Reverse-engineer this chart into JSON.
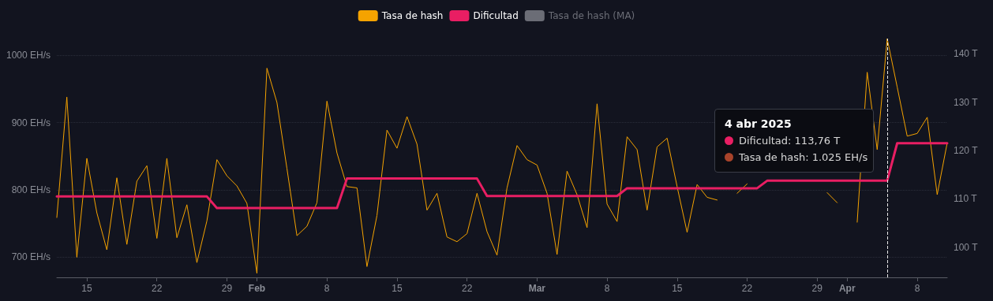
{
  "chart_data": {
    "type": "line",
    "x": [
      "2025-01-12",
      "2025-01-13",
      "2025-01-14",
      "2025-01-15",
      "2025-01-16",
      "2025-01-17",
      "2025-01-18",
      "2025-01-19",
      "2025-01-20",
      "2025-01-21",
      "2025-01-22",
      "2025-01-23",
      "2025-01-24",
      "2025-01-25",
      "2025-01-26",
      "2025-01-27",
      "2025-01-28",
      "2025-01-29",
      "2025-01-30",
      "2025-01-31",
      "2025-02-01",
      "2025-02-02",
      "2025-02-03",
      "2025-02-04",
      "2025-02-05",
      "2025-02-06",
      "2025-02-07",
      "2025-02-08",
      "2025-02-09",
      "2025-02-10",
      "2025-02-11",
      "2025-02-12",
      "2025-02-13",
      "2025-02-14",
      "2025-02-15",
      "2025-02-16",
      "2025-02-17",
      "2025-02-18",
      "2025-02-19",
      "2025-02-20",
      "2025-02-21",
      "2025-02-22",
      "2025-02-23",
      "2025-02-24",
      "2025-02-25",
      "2025-02-26",
      "2025-02-27",
      "2025-02-28",
      "2025-03-01",
      "2025-03-02",
      "2025-03-03",
      "2025-03-04",
      "2025-03-05",
      "2025-03-06",
      "2025-03-07",
      "2025-03-08",
      "2025-03-09",
      "2025-03-10",
      "2025-03-11",
      "2025-03-12",
      "2025-03-13",
      "2025-03-14",
      "2025-03-15",
      "2025-03-16",
      "2025-03-17",
      "2025-03-18",
      "2025-03-19",
      "2025-03-20",
      "2025-03-21",
      "2025-03-22",
      "2025-03-23",
      "2025-03-24",
      "2025-03-25",
      "2025-03-26",
      "2025-03-27",
      "2025-03-28",
      "2025-03-29",
      "2025-03-30",
      "2025-03-31",
      "2025-04-01",
      "2025-04-02",
      "2025-04-03",
      "2025-04-04",
      "2025-04-05",
      "2025-04-06",
      "2025-04-07",
      "2025-04-08",
      "2025-04-09",
      "2025-04-10",
      "2025-04-11"
    ],
    "series": [
      {
        "name": "Tasa de hash",
        "color": "#f5a300",
        "values": [
          759,
          938,
          700,
          847,
          766,
          711,
          818,
          719,
          813,
          836,
          728,
          847,
          729,
          778,
          692,
          754,
          845,
          821,
          806,
          780,
          676,
          981,
          930,
          832,
          732,
          746,
          781,
          932,
          855,
          805,
          803,
          686,
          762,
          889,
          862,
          909,
          868,
          770,
          795,
          730,
          723,
          735,
          795,
          738,
          703,
          803,
          866,
          845,
          837,
          795,
          704,
          828,
          793,
          744,
          928,
          779,
          753,
          879,
          860,
          770,
          864,
          877,
          805,
          737,
          808,
          789,
          785,
          null,
          795,
          809,
          null,
          null,
          null,
          null,
          null,
          null,
          null,
          796,
          781,
          null,
          752,
          975,
          860,
          1025,
          953,
          880,
          884,
          908,
          793,
          870
        ]
      },
      {
        "name": "Dificultad",
        "color": "#e91e63",
        "axis": "y2",
        "values": [
          110.5,
          110.5,
          110.5,
          110.5,
          110.5,
          110.5,
          110.5,
          110.5,
          110.5,
          110.5,
          110.5,
          110.5,
          110.5,
          110.5,
          110.5,
          110.5,
          108.1,
          108.1,
          108.1,
          108.1,
          108.1,
          108.1,
          108.1,
          108.1,
          108.1,
          108.1,
          108.1,
          108.1,
          108.1,
          114.2,
          114.2,
          114.2,
          114.2,
          114.2,
          114.2,
          114.2,
          114.2,
          114.2,
          114.2,
          114.2,
          114.2,
          114.2,
          114.2,
          110.6,
          110.6,
          110.6,
          110.6,
          110.6,
          110.6,
          110.6,
          110.6,
          110.6,
          110.6,
          110.6,
          110.6,
          110.6,
          110.6,
          112.2,
          112.2,
          112.2,
          112.2,
          112.2,
          112.2,
          112.2,
          112.2,
          112.2,
          112.2,
          112.2,
          112.2,
          112.2,
          112.2,
          113.76,
          113.76,
          113.76,
          113.76,
          113.76,
          113.76,
          113.76,
          113.76,
          113.76,
          113.76,
          113.76,
          113.76,
          113.76,
          121.5,
          121.5,
          121.5,
          121.5,
          121.5,
          121.5
        ]
      },
      {
        "name": "Tasa de hash (MA)",
        "color": "#6b6d76",
        "values": [
          null,
          null,
          null,
          null,
          null,
          null,
          null,
          null,
          null,
          null,
          null,
          null,
          null,
          null,
          null,
          null,
          null,
          null,
          null,
          null,
          null,
          null,
          null,
          null,
          null,
          null,
          null,
          null,
          null,
          null,
          null,
          null,
          null,
          null,
          null,
          null,
          null,
          null,
          null,
          null,
          null,
          null,
          null,
          null,
          null,
          null,
          null,
          null,
          null,
          null,
          null,
          null,
          null,
          null,
          null,
          null,
          null,
          null,
          null,
          null,
          null,
          null,
          null,
          null,
          null,
          null,
          null,
          null,
          null,
          null,
          null,
          null,
          null,
          null,
          null,
          null,
          null,
          null,
          null,
          null,
          null,
          null,
          null,
          null,
          null,
          null,
          null,
          null,
          null,
          null
        ]
      }
    ],
    "xlim": [
      "2025-01-12",
      "2025-04-11"
    ],
    "xticks": [
      {
        "value": "2025-01-15",
        "label": "15"
      },
      {
        "value": "2025-01-22",
        "label": "22"
      },
      {
        "value": "2025-01-29",
        "label": "29"
      },
      {
        "value": "2025-02-01",
        "label": "Feb"
      },
      {
        "value": "2025-02-08",
        "label": "8"
      },
      {
        "value": "2025-02-15",
        "label": "15"
      },
      {
        "value": "2025-02-22",
        "label": "22"
      },
      {
        "value": "2025-03-01",
        "label": "Mar"
      },
      {
        "value": "2025-03-08",
        "label": "8"
      },
      {
        "value": "2025-03-15",
        "label": "15"
      },
      {
        "value": "2025-03-22",
        "label": "22"
      },
      {
        "value": "2025-03-29",
        "label": "29"
      },
      {
        "value": "2025-04-01",
        "label": "Apr"
      },
      {
        "value": "2025-04-08",
        "label": "8"
      }
    ],
    "ylim": [
      670,
      1025
    ],
    "yticks": [
      {
        "value": 700,
        "label": "700 EH/s"
      },
      {
        "value": 800,
        "label": "800 EH/s"
      },
      {
        "value": 900,
        "label": "900 EH/s"
      },
      {
        "value": 1000,
        "label": "1000 EH/s"
      }
    ],
    "y2lim": [
      93.8,
      143.1
    ],
    "y2ticks": [
      {
        "value": 100,
        "label": "100 T"
      },
      {
        "value": 110,
        "label": "110 T"
      },
      {
        "value": 120,
        "label": "120 T"
      },
      {
        "value": 130,
        "label": "130 T"
      },
      {
        "value": 140,
        "label": "140 T"
      }
    ],
    "ref_lines": [
      {
        "axis": "x",
        "value": "2025-04-05",
        "color": "#e8e8e8",
        "line_style": "dashed"
      }
    ],
    "annotations": [
      "4 abr 2025",
      "Dificultad: 113,76 T",
      "Tasa de hash: 1.025 EH/s"
    ],
    "grid": "y",
    "legend": "top",
    "marker": "none",
    "line_style": "solid"
  }
}
